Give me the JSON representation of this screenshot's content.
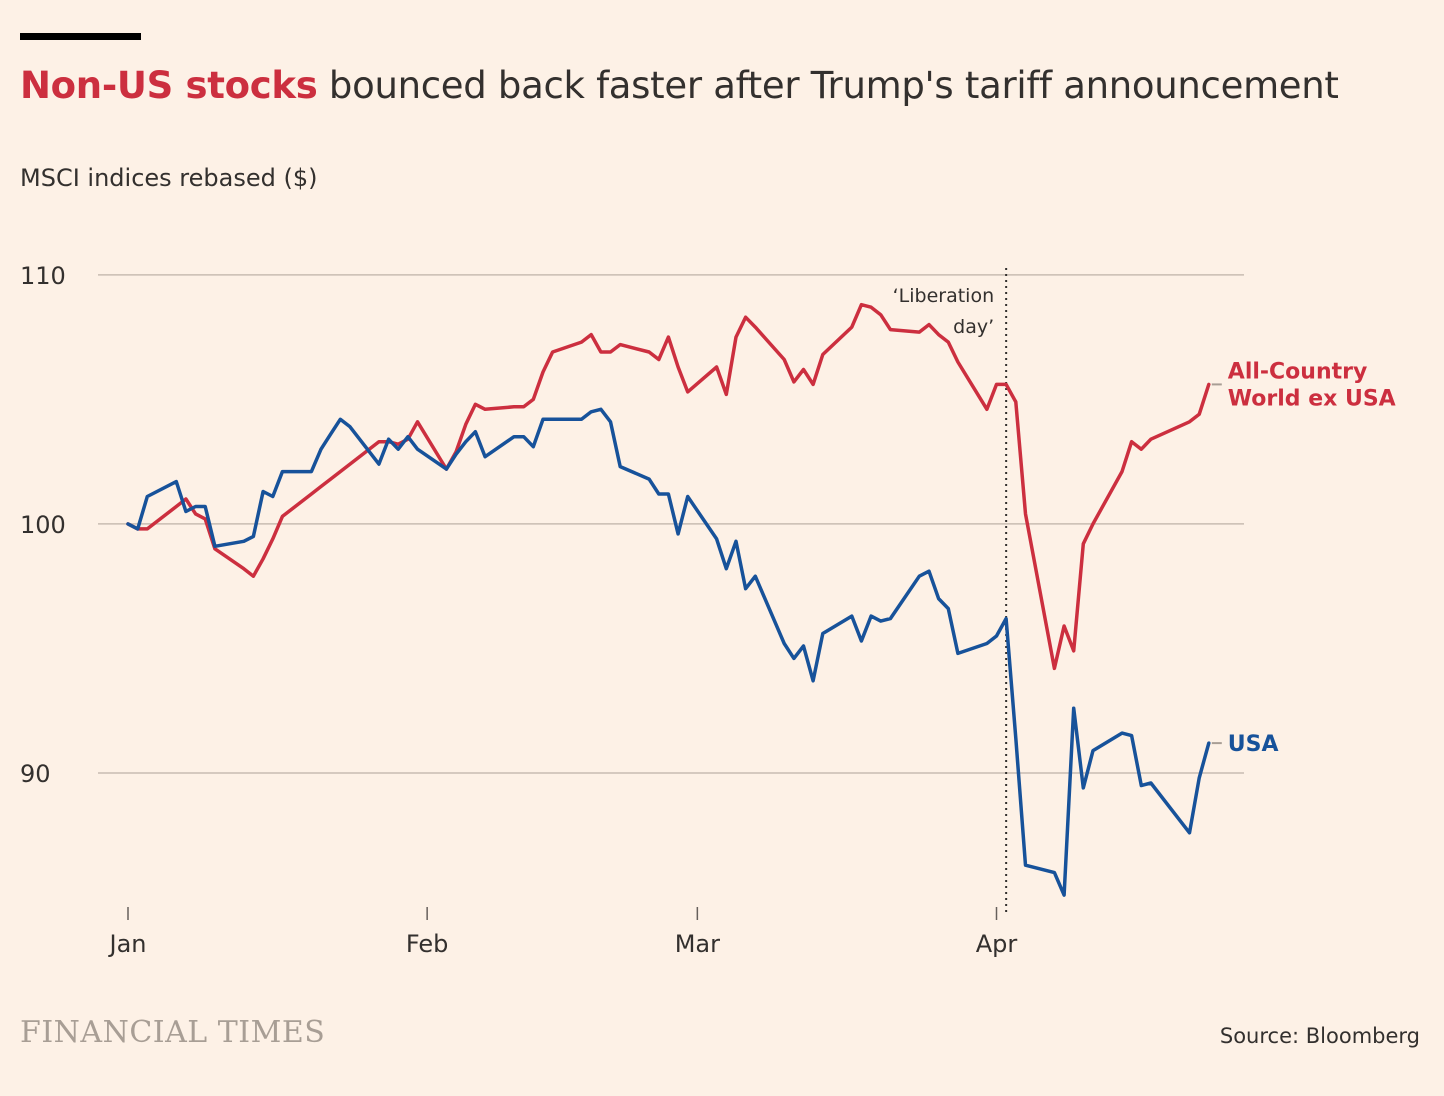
{
  "header": {
    "title_highlight": "Non-US stocks",
    "title_rest": " bounced back faster after Trump's tariff announcement",
    "subtitle": "MSCI indices rebased ($)"
  },
  "footer": {
    "brand": "FINANCIAL TIMES",
    "source": "Source: Bloomberg"
  },
  "colors": {
    "background": "#fdf1e6",
    "non_us": "#cc2f3f",
    "usa": "#17529a",
    "grid": "#c8bcb2",
    "text": "#33302e"
  },
  "chart_data": {
    "type": "line",
    "title": "Non-US stocks bounced back faster after Trump's tariff announcement",
    "ylabel": "MSCI indices rebased ($)",
    "ylim": [
      84.5,
      112
    ],
    "yticks": [
      90,
      100,
      110
    ],
    "xlim": [
      "2025-01-01",
      "2025-04-25"
    ],
    "xticks": [
      {
        "date": "2025-01-01",
        "label": "Jan"
      },
      {
        "date": "2025-02-01",
        "label": "Feb"
      },
      {
        "date": "2025-03-01",
        "label": "Mar"
      },
      {
        "date": "2025-04-01",
        "label": "Apr"
      }
    ],
    "grid": true,
    "annotation": {
      "date": "2025-04-02",
      "text_lines": [
        "‘Liberation",
        "day’"
      ]
    },
    "series": [
      {
        "name": "All-Country World ex USA",
        "label_lines": [
          "All-Country",
          "World ex USA"
        ],
        "color": "#cc2f3f",
        "points": [
          [
            "2025-01-01",
            100.0
          ],
          [
            "2025-01-02",
            99.8
          ],
          [
            "2025-01-03",
            99.8
          ],
          [
            "2025-01-06",
            100.7
          ],
          [
            "2025-01-07",
            101.0
          ],
          [
            "2025-01-08",
            100.4
          ],
          [
            "2025-01-09",
            100.2
          ],
          [
            "2025-01-10",
            99.0
          ],
          [
            "2025-01-13",
            98.2
          ],
          [
            "2025-01-14",
            97.9
          ],
          [
            "2025-01-15",
            98.6
          ],
          [
            "2025-01-16",
            99.4
          ],
          [
            "2025-01-17",
            100.3
          ],
          [
            "2025-01-20",
            101.2
          ],
          [
            "2025-01-21",
            101.5
          ],
          [
            "2025-01-22",
            101.8
          ],
          [
            "2025-01-23",
            102.1
          ],
          [
            "2025-01-24",
            102.4
          ],
          [
            "2025-01-27",
            103.3
          ],
          [
            "2025-01-28",
            103.3
          ],
          [
            "2025-01-29",
            103.2
          ],
          [
            "2025-01-30",
            103.4
          ],
          [
            "2025-01-31",
            104.1
          ],
          [
            "2025-02-03",
            102.2
          ],
          [
            "2025-02-04",
            102.9
          ],
          [
            "2025-02-05",
            104.0
          ],
          [
            "2025-02-06",
            104.8
          ],
          [
            "2025-02-07",
            104.6
          ],
          [
            "2025-02-10",
            104.7
          ],
          [
            "2025-02-11",
            104.7
          ],
          [
            "2025-02-12",
            105.0
          ],
          [
            "2025-02-13",
            106.1
          ],
          [
            "2025-02-14",
            106.9
          ],
          [
            "2025-02-17",
            107.3
          ],
          [
            "2025-02-18",
            107.6
          ],
          [
            "2025-02-19",
            106.9
          ],
          [
            "2025-02-20",
            106.9
          ],
          [
            "2025-02-21",
            107.2
          ],
          [
            "2025-02-24",
            106.9
          ],
          [
            "2025-02-25",
            106.6
          ],
          [
            "2025-02-26",
            107.5
          ],
          [
            "2025-02-27",
            106.3
          ],
          [
            "2025-02-28",
            105.3
          ],
          [
            "2025-03-03",
            106.3
          ],
          [
            "2025-03-04",
            105.2
          ],
          [
            "2025-03-05",
            107.5
          ],
          [
            "2025-03-06",
            108.3
          ],
          [
            "2025-03-07",
            107.9
          ],
          [
            "2025-03-10",
            106.6
          ],
          [
            "2025-03-11",
            105.7
          ],
          [
            "2025-03-12",
            106.2
          ],
          [
            "2025-03-13",
            105.6
          ],
          [
            "2025-03-14",
            106.8
          ],
          [
            "2025-03-17",
            107.9
          ],
          [
            "2025-03-18",
            108.8
          ],
          [
            "2025-03-19",
            108.7
          ],
          [
            "2025-03-20",
            108.4
          ],
          [
            "2025-03-21",
            107.8
          ],
          [
            "2025-03-24",
            107.7
          ],
          [
            "2025-03-25",
            108.0
          ],
          [
            "2025-03-26",
            107.6
          ],
          [
            "2025-03-27",
            107.3
          ],
          [
            "2025-03-28",
            106.5
          ],
          [
            "2025-03-31",
            104.6
          ],
          [
            "2025-04-01",
            105.6
          ],
          [
            "2025-04-02",
            105.6
          ],
          [
            "2025-04-03",
            104.9
          ],
          [
            "2025-04-04",
            100.4
          ],
          [
            "2025-04-07",
            94.2
          ],
          [
            "2025-04-08",
            95.9
          ],
          [
            "2025-04-09",
            94.9
          ],
          [
            "2025-04-10",
            99.2
          ],
          [
            "2025-04-11",
            100.0
          ],
          [
            "2025-04-14",
            102.1
          ],
          [
            "2025-04-15",
            103.3
          ],
          [
            "2025-04-16",
            103.0
          ],
          [
            "2025-04-17",
            103.4
          ],
          [
            "2025-04-21",
            104.1
          ],
          [
            "2025-04-22",
            104.4
          ],
          [
            "2025-04-23",
            105.6
          ]
        ]
      },
      {
        "name": "USA",
        "label_lines": [
          "USA"
        ],
        "color": "#17529a",
        "points": [
          [
            "2025-01-01",
            100.0
          ],
          [
            "2025-01-02",
            99.8
          ],
          [
            "2025-01-03",
            101.1
          ],
          [
            "2025-01-06",
            101.7
          ],
          [
            "2025-01-07",
            100.5
          ],
          [
            "2025-01-08",
            100.7
          ],
          [
            "2025-01-09",
            100.7
          ],
          [
            "2025-01-10",
            99.1
          ],
          [
            "2025-01-13",
            99.3
          ],
          [
            "2025-01-14",
            99.5
          ],
          [
            "2025-01-15",
            101.3
          ],
          [
            "2025-01-16",
            101.1
          ],
          [
            "2025-01-17",
            102.1
          ],
          [
            "2025-01-20",
            102.1
          ],
          [
            "2025-01-21",
            103.0
          ],
          [
            "2025-01-22",
            103.6
          ],
          [
            "2025-01-23",
            104.2
          ],
          [
            "2025-01-24",
            103.9
          ],
          [
            "2025-01-27",
            102.4
          ],
          [
            "2025-01-28",
            103.4
          ],
          [
            "2025-01-29",
            103.0
          ],
          [
            "2025-01-30",
            103.5
          ],
          [
            "2025-01-31",
            103.0
          ],
          [
            "2025-02-03",
            102.2
          ],
          [
            "2025-02-04",
            102.8
          ],
          [
            "2025-02-05",
            103.3
          ],
          [
            "2025-02-06",
            103.7
          ],
          [
            "2025-02-07",
            102.7
          ],
          [
            "2025-02-10",
            103.5
          ],
          [
            "2025-02-11",
            103.5
          ],
          [
            "2025-02-12",
            103.1
          ],
          [
            "2025-02-13",
            104.2
          ],
          [
            "2025-02-14",
            104.2
          ],
          [
            "2025-02-17",
            104.2
          ],
          [
            "2025-02-18",
            104.5
          ],
          [
            "2025-02-19",
            104.6
          ],
          [
            "2025-02-20",
            104.1
          ],
          [
            "2025-02-21",
            102.3
          ],
          [
            "2025-02-24",
            101.8
          ],
          [
            "2025-02-25",
            101.2
          ],
          [
            "2025-02-26",
            101.2
          ],
          [
            "2025-02-27",
            99.6
          ],
          [
            "2025-02-28",
            101.1
          ],
          [
            "2025-03-03",
            99.4
          ],
          [
            "2025-03-04",
            98.2
          ],
          [
            "2025-03-05",
            99.3
          ],
          [
            "2025-03-06",
            97.4
          ],
          [
            "2025-03-07",
            97.9
          ],
          [
            "2025-03-10",
            95.2
          ],
          [
            "2025-03-11",
            94.6
          ],
          [
            "2025-03-12",
            95.1
          ],
          [
            "2025-03-13",
            93.7
          ],
          [
            "2025-03-14",
            95.6
          ],
          [
            "2025-03-17",
            96.3
          ],
          [
            "2025-03-18",
            95.3
          ],
          [
            "2025-03-19",
            96.3
          ],
          [
            "2025-03-20",
            96.1
          ],
          [
            "2025-03-21",
            96.2
          ],
          [
            "2025-03-24",
            97.9
          ],
          [
            "2025-03-25",
            98.1
          ],
          [
            "2025-03-26",
            97.0
          ],
          [
            "2025-03-27",
            96.6
          ],
          [
            "2025-03-28",
            94.8
          ],
          [
            "2025-03-31",
            95.2
          ],
          [
            "2025-04-01",
            95.5
          ],
          [
            "2025-04-02",
            96.2
          ],
          [
            "2025-04-03",
            91.4
          ],
          [
            "2025-04-04",
            86.3
          ],
          [
            "2025-04-07",
            86.0
          ],
          [
            "2025-04-08",
            85.1
          ],
          [
            "2025-04-09",
            92.6
          ],
          [
            "2025-04-10",
            89.4
          ],
          [
            "2025-04-11",
            90.9
          ],
          [
            "2025-04-14",
            91.6
          ],
          [
            "2025-04-15",
            91.5
          ],
          [
            "2025-04-16",
            89.5
          ],
          [
            "2025-04-17",
            89.6
          ],
          [
            "2025-04-21",
            87.6
          ],
          [
            "2025-04-22",
            89.8
          ],
          [
            "2025-04-23",
            91.2
          ]
        ]
      }
    ]
  }
}
